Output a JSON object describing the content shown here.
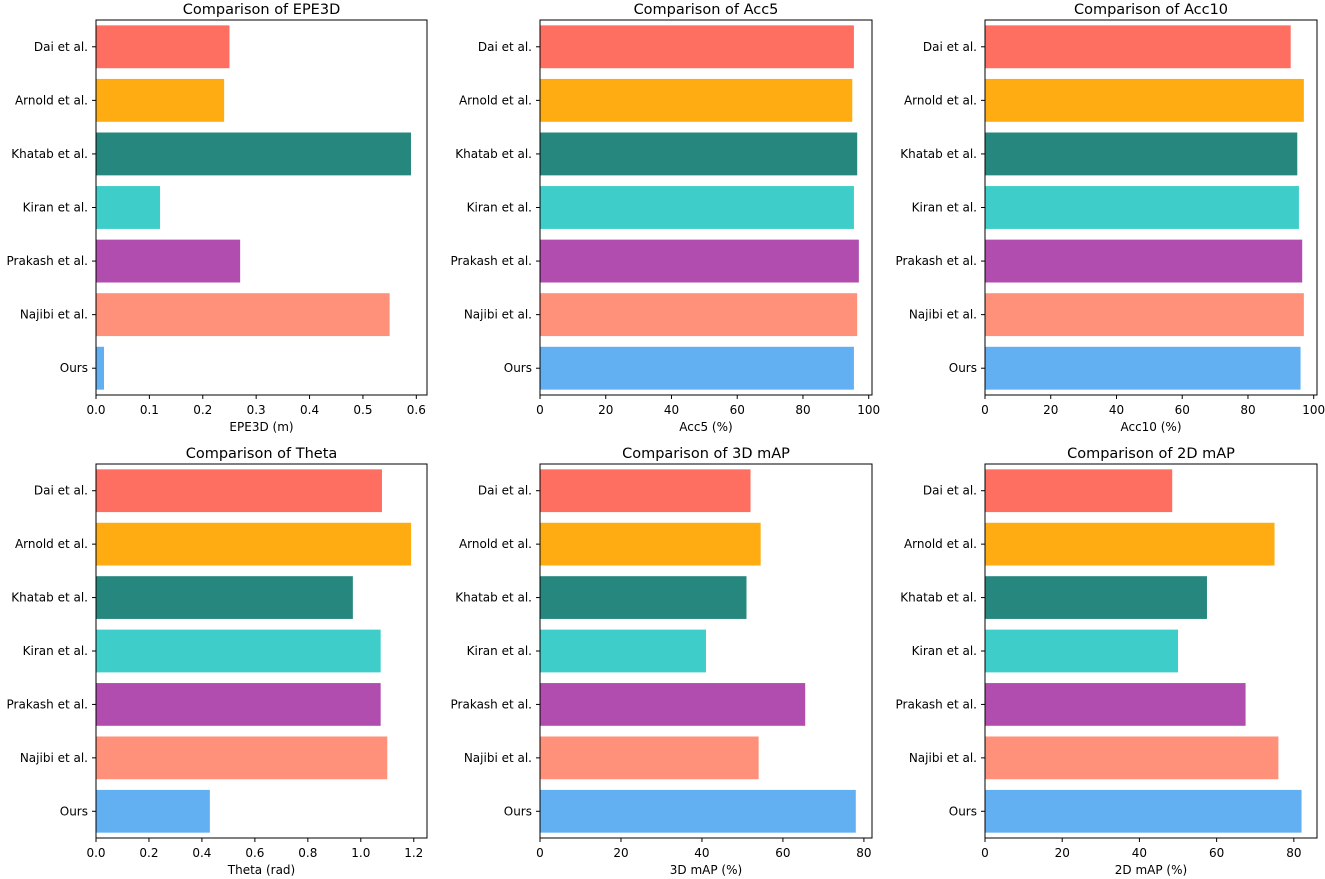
{
  "chart_data": [
    {
      "type": "bar",
      "orientation": "horizontal",
      "title": "Comparison of EPE3D",
      "xlabel": "EPE3D (m)",
      "ylabel": "",
      "xlim": [
        0,
        0.62
      ],
      "xticks": [
        0,
        0.1,
        0.2,
        0.3,
        0.4,
        0.5,
        0.6
      ],
      "tick_labels": [
        "0.0",
        "0.1",
        "0.2",
        "0.3",
        "0.4",
        "0.5",
        "0.6"
      ],
      "categories": [
        "Dai et al.",
        "Arnold et al.",
        "Khatab et al.",
        "Kiran et al.",
        "Prakash et al.",
        "Najibi et al.",
        "Ours"
      ],
      "values": [
        0.25,
        0.24,
        0.59,
        0.12,
        0.27,
        0.55,
        0.015
      ],
      "grid": false
    },
    {
      "type": "bar",
      "orientation": "horizontal",
      "title": "Comparison of Acc5",
      "xlabel": "Acc5 (%)",
      "ylabel": "",
      "xlim": [
        0,
        101
      ],
      "xticks": [
        0,
        20,
        40,
        60,
        80,
        100
      ],
      "tick_labels": [
        "0",
        "20",
        "40",
        "60",
        "80",
        "100"
      ],
      "categories": [
        "Dai et al.",
        "Arnold et al.",
        "Khatab et al.",
        "Kiran et al.",
        "Prakash et al.",
        "Najibi et al.",
        "Ours"
      ],
      "values": [
        95.5,
        95,
        96.5,
        95.5,
        97,
        96.5,
        95.5
      ],
      "grid": false
    },
    {
      "type": "bar",
      "orientation": "horizontal",
      "title": "Comparison of Acc10",
      "xlabel": "Acc10 (%)",
      "ylabel": "",
      "xlim": [
        0,
        101
      ],
      "xticks": [
        0,
        20,
        40,
        60,
        80,
        100
      ],
      "tick_labels": [
        "0",
        "20",
        "40",
        "60",
        "80",
        "100"
      ],
      "categories": [
        "Dai et al.",
        "Arnold et al.",
        "Khatab et al.",
        "Kiran et al.",
        "Prakash et al.",
        "Najibi et al.",
        "Ours"
      ],
      "values": [
        93,
        97,
        95,
        95.5,
        96.5,
        97,
        96
      ],
      "grid": false
    },
    {
      "type": "bar",
      "orientation": "horizontal",
      "title": "Comparison of Theta",
      "xlabel": "Theta (rad)",
      "ylabel": "",
      "xlim": [
        0,
        1.25
      ],
      "xticks": [
        0,
        0.2,
        0.4,
        0.6,
        0.8,
        1.0,
        1.2
      ],
      "tick_labels": [
        "0.0",
        "0.2",
        "0.4",
        "0.6",
        "0.8",
        "1.0",
        "1.2"
      ],
      "categories": [
        "Dai et al.",
        "Arnold et al.",
        "Khatab et al.",
        "Kiran et al.",
        "Prakash et al.",
        "Najibi et al.",
        "Ours"
      ],
      "values": [
        1.08,
        1.19,
        0.97,
        1.075,
        1.075,
        1.1,
        0.43
      ],
      "grid": false
    },
    {
      "type": "bar",
      "orientation": "horizontal",
      "title": "Comparison of 3D mAP",
      "xlabel": "3D mAP (%)",
      "ylabel": "",
      "xlim": [
        0,
        82
      ],
      "xticks": [
        0,
        20,
        40,
        60,
        80
      ],
      "tick_labels": [
        "0",
        "20",
        "40",
        "60",
        "80"
      ],
      "categories": [
        "Dai et al.",
        "Arnold et al.",
        "Khatab et al.",
        "Kiran et al.",
        "Prakash et al.",
        "Najibi et al.",
        "Ours"
      ],
      "values": [
        52,
        54.5,
        51,
        41,
        65.5,
        54,
        78
      ],
      "grid": false
    },
    {
      "type": "bar",
      "orientation": "horizontal",
      "title": "Comparison of 2D mAP",
      "xlabel": "2D mAP (%)",
      "ylabel": "",
      "xlim": [
        0,
        86
      ],
      "xticks": [
        0,
        20,
        40,
        60,
        80
      ],
      "tick_labels": [
        "0",
        "20",
        "40",
        "60",
        "80"
      ],
      "categories": [
        "Dai et al.",
        "Arnold et al.",
        "Khatab et al.",
        "Kiran et al.",
        "Prakash et al.",
        "Najibi et al.",
        "Ours"
      ],
      "values": [
        48.5,
        75,
        57.5,
        50,
        67.5,
        76,
        82
      ],
      "grid": false
    }
  ],
  "colors": {
    "bars": [
      "#ff6f61",
      "#ffab12",
      "#26877f",
      "#3ecdc9",
      "#b14dae",
      "#ff907a",
      "#62b0f2"
    ],
    "axis": "#000000"
  }
}
